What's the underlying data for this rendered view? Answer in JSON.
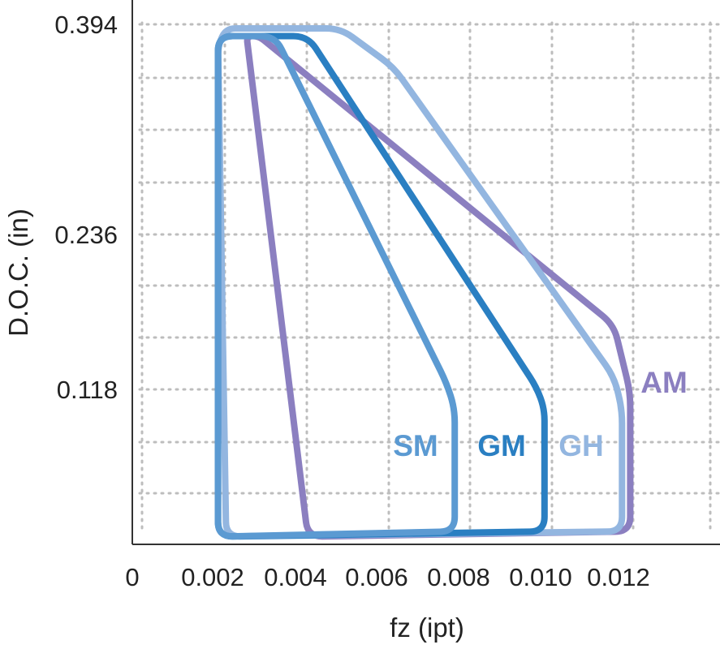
{
  "chart_data": {
    "type": "area",
    "title": "",
    "xlabel": "fz (ipt)",
    "ylabel": "D.O.C. (in)",
    "x_ticks": [
      "0",
      "0.002",
      "0.004",
      "0.006",
      "0.008",
      "0.010",
      "0.012"
    ],
    "y_ticks": [
      "0.118",
      "0.236",
      "0.394"
    ],
    "xlim": [
      0,
      0.0144
    ],
    "ylim": [
      0,
      0.422
    ],
    "grid": true,
    "legend": "none",
    "series": [
      {
        "name": "AM",
        "color": "#8b7fc0",
        "points": [
          [
            0.0028,
            0.394
          ],
          [
            0.0031,
            0.394
          ],
          [
            0.0118,
            0.17
          ],
          [
            0.0122,
            0.118
          ],
          [
            0.0122,
            0.01
          ],
          [
            0.0043,
            0.006
          ]
        ]
      },
      {
        "name": "GH",
        "color": "#93b6e0",
        "points": [
          [
            0.0021,
            0.387
          ],
          [
            0.0023,
            0.4
          ],
          [
            0.0051,
            0.4
          ],
          [
            0.0064,
            0.37
          ],
          [
            0.0118,
            0.13
          ],
          [
            0.012,
            0.105
          ],
          [
            0.012,
            0.01
          ],
          [
            0.0023,
            0.006
          ]
        ]
      },
      {
        "name": "GM",
        "color": "#2a7fc2",
        "points": [
          [
            0.0021,
            0.394
          ],
          [
            0.0043,
            0.394
          ],
          [
            0.0099,
            0.122
          ],
          [
            0.0101,
            0.105
          ],
          [
            0.0101,
            0.01
          ],
          [
            0.0021,
            0.006
          ]
        ]
      },
      {
        "name": "SM",
        "color": "#5b9ad2",
        "points": [
          [
            0.0021,
            0.394
          ],
          [
            0.0035,
            0.394
          ],
          [
            0.0077,
            0.125
          ],
          [
            0.0079,
            0.105
          ],
          [
            0.0079,
            0.01
          ],
          [
            0.0021,
            0.006
          ]
        ]
      }
    ],
    "series_label_colors": {
      "AM": "#8b7fc0",
      "GH": "#93b6e0",
      "GM": "#2a7fc2",
      "SM": "#5b9ad2"
    }
  }
}
